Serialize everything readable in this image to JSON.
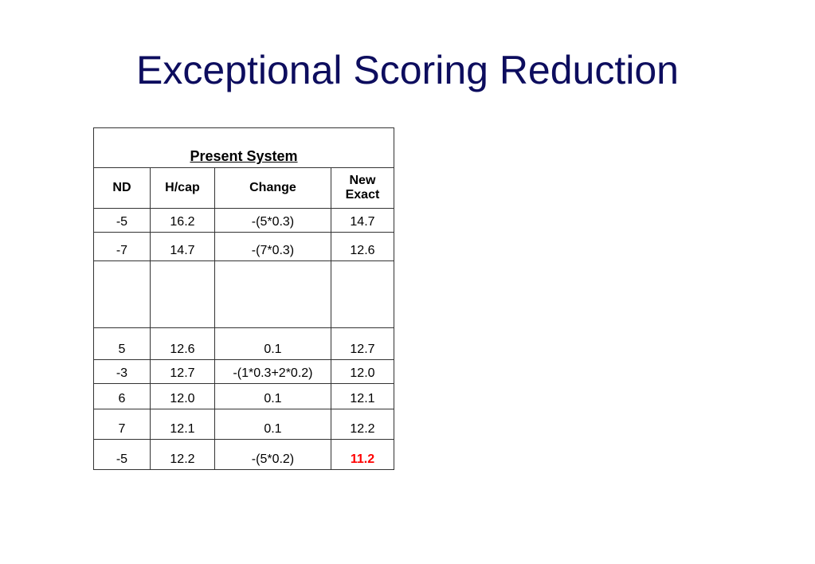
{
  "title": "Exceptional Scoring Reduction",
  "table": {
    "header": "Present System",
    "columns": [
      "ND",
      "H/cap",
      "Change",
      "New Exact"
    ],
    "columns_line1": [
      "ND",
      "H/cap",
      "Change",
      "New"
    ],
    "columns_line2": [
      "",
      "",
      "",
      "Exact"
    ],
    "rows": [
      [
        "-5",
        "16.2",
        "-(5*0.3)",
        "14.7"
      ],
      [
        "-7",
        "14.7",
        "-(7*0.3)",
        "12.6"
      ],
      [
        "",
        "",
        "",
        ""
      ],
      [
        "5",
        "12.6",
        "0.1",
        "12.7"
      ],
      [
        "-3",
        "12.7",
        "-(1*0.3+2*0.2)",
        "12.0"
      ],
      [
        "6",
        "12.0",
        "0.1",
        "12.1"
      ],
      [
        "7",
        "12.1",
        "0.1",
        "12.2"
      ],
      [
        "-5",
        "12.2",
        "-(5*0.2)",
        "11.2"
      ]
    ],
    "highlight_color": "#ff0000"
  },
  "colors": {
    "title": "#0d0d5e",
    "text": "#000000",
    "border": "#333333"
  }
}
